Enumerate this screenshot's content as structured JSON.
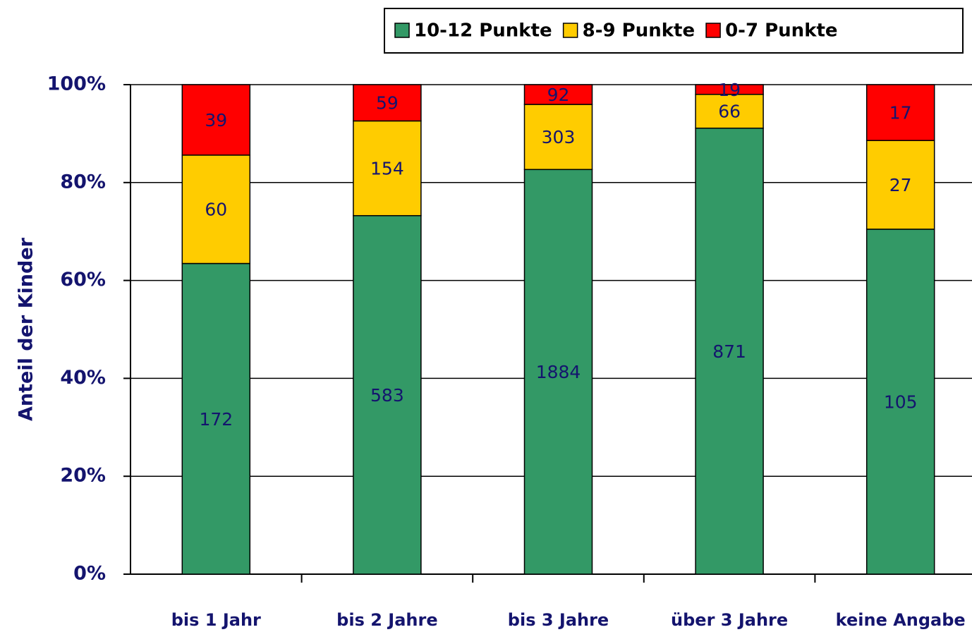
{
  "chart_data": {
    "type": "bar",
    "stacking": "percent",
    "y_label": "Anteil der Kinder",
    "categories": [
      "bis 1 Jahr",
      "bis 2 Jahre",
      "bis 3 Jahre",
      "über 3 Jahre",
      "keine Angabe"
    ],
    "series": [
      {
        "name": "10-12 Punkte",
        "color": "#339966",
        "values": [
          172,
          583,
          1884,
          871,
          105
        ]
      },
      {
        "name": "8-9 Punkte",
        "color": "#ffcc00",
        "values": [
          60,
          154,
          303,
          66,
          27
        ]
      },
      {
        "name": "0-7 Punkte",
        "color": "#ff0000",
        "values": [
          39,
          59,
          92,
          19,
          17
        ]
      }
    ],
    "ylim": [
      0,
      100
    ],
    "yticks": [
      {
        "value": 0,
        "label": "0%"
      },
      {
        "value": 20,
        "label": "20%"
      },
      {
        "value": 40,
        "label": "40%"
      },
      {
        "value": 60,
        "label": "60%"
      },
      {
        "value": 80,
        "label": "80%"
      },
      {
        "value": 100,
        "label": "100%"
      }
    ],
    "grid": true
  }
}
